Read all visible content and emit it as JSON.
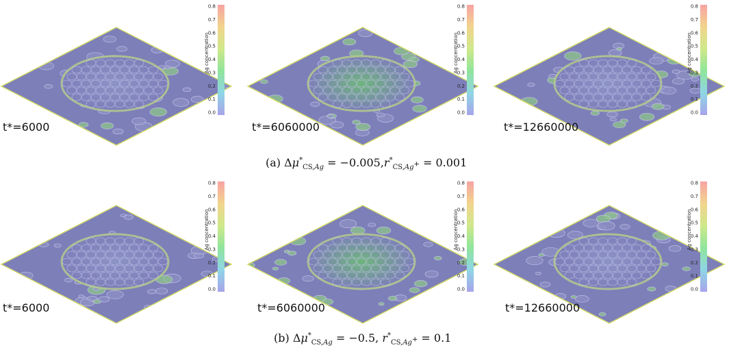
{
  "figure": {
    "rows": [
      {
        "caption": {
          "prefix": "(a)",
          "delta_mu_value": "−0.005,",
          "r_value": "0.001"
        },
        "panels": [
          {
            "time_label": "t*=6000",
            "colorbar": {
              "ticks": [
                "0.8",
                "0.7",
                "0.6",
                "0.5",
                "0.4",
                "0.3",
                "0.2",
                "0.1",
                "0.0"
              ],
              "title": "Ag concentration"
            }
          },
          {
            "time_label": "t*=6060000",
            "colorbar": {
              "ticks": [
                "0.8",
                "0.7",
                "0.6",
                "0.5",
                "0.4",
                "0.3",
                "0.2",
                "0.1",
                "0.0"
              ],
              "title": "Ag concentration"
            }
          },
          {
            "time_label": "t*=12660000",
            "colorbar": {
              "ticks": [
                "0.8",
                "0.7",
                "0.6",
                "0.5",
                "0.4",
                "0.3",
                "0.2",
                "0.1",
                "0.0"
              ],
              "title": "Ag concentration"
            }
          }
        ]
      },
      {
        "caption": {
          "prefix": "(b)",
          "delta_mu_value": "−0.5,",
          "r_value": "0.1"
        },
        "panels": [
          {
            "time_label": "t*=6000",
            "colorbar": {
              "ticks": [
                "0.8",
                "0.7",
                "0.6",
                "0.5",
                "0.4",
                "0.3",
                "0.2",
                "0.1",
                "0.0"
              ],
              "title": "Ag concentration"
            }
          },
          {
            "time_label": "t*=6060000",
            "colorbar": {
              "ticks": [
                "0.8",
                "0.7",
                "0.6",
                "0.5",
                "0.4",
                "0.3",
                "0.2",
                "0.1",
                "0.0"
              ],
              "title": "Ag concentration"
            }
          },
          {
            "time_label": "t*=12660000",
            "colorbar": {
              "ticks": [
                "0.8",
                "0.7",
                "0.6",
                "0.5",
                "0.4",
                "0.3",
                "0.2",
                "0.1",
                "0.0"
              ],
              "title": "Ag concentration"
            }
          }
        ]
      }
    ],
    "colors": {
      "substrate": "#7d7fb9",
      "edge": "#d6dc6a",
      "pattern_line": "#c9c6ee",
      "green_mid": "#8ec48a"
    }
  }
}
